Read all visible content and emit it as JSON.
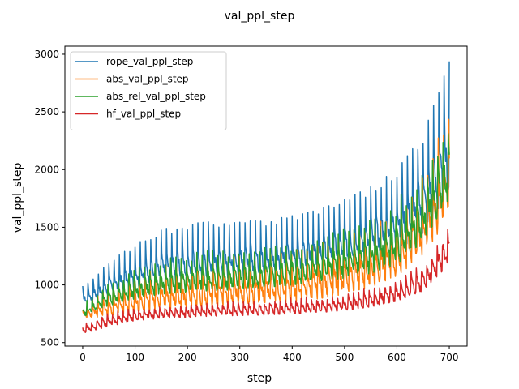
{
  "chart_data": {
    "type": "line",
    "title": "val_ppl_step",
    "xlabel": "step",
    "ylabel": "val_ppl_step",
    "xlim": [
      -34,
      734
    ],
    "ylim": [
      470,
      3070
    ],
    "x_ticks": [
      0,
      100,
      200,
      300,
      400,
      500,
      600,
      700
    ],
    "y_ticks": [
      500,
      1000,
      1500,
      2000,
      2500,
      3000
    ],
    "grid": false,
    "legend": "top-left",
    "x_range": [
      0,
      700
    ],
    "cycle_length": 10,
    "series": [
      {
        "name": "rope_val_ppl_step",
        "color": "#1f77b4",
        "envelope_x": [
          0,
          50,
          100,
          150,
          200,
          250,
          300,
          350,
          400,
          450,
          500,
          550,
          600,
          650,
          700
        ],
        "low": [
          820,
          900,
          960,
          1000,
          1020,
          1030,
          1040,
          1060,
          1080,
          1110,
          1150,
          1200,
          1300,
          1450,
          1780
        ],
        "high": [
          990,
          1200,
          1350,
          1480,
          1530,
          1550,
          1550,
          1560,
          1600,
          1650,
          1740,
          1850,
          2000,
          2300,
          2940
        ]
      },
      {
        "name": "abs_val_ppl_step",
        "color": "#ff7f0e",
        "envelope_x": [
          0,
          50,
          100,
          150,
          200,
          250,
          300,
          350,
          400,
          450,
          500,
          550,
          600,
          650,
          700
        ],
        "low": [
          700,
          730,
          760,
          790,
          800,
          810,
          820,
          830,
          850,
          880,
          920,
          980,
          1080,
          1250,
          1600
        ],
        "high": [
          860,
          1000,
          1100,
          1170,
          1220,
          1250,
          1270,
          1290,
          1330,
          1380,
          1450,
          1540,
          1700,
          2000,
          2640
        ]
      },
      {
        "name": "abs_rel_val_ppl_step",
        "color": "#2ca02c",
        "envelope_x": [
          0,
          50,
          100,
          150,
          200,
          250,
          300,
          350,
          400,
          450,
          500,
          550,
          600,
          650,
          700
        ],
        "low": [
          720,
          820,
          880,
          920,
          940,
          950,
          960,
          980,
          1000,
          1030,
          1060,
          1100,
          1180,
          1380,
          1750
        ],
        "high": [
          860,
          1080,
          1200,
          1300,
          1350,
          1380,
          1390,
          1400,
          1450,
          1500,
          1580,
          1680,
          1850,
          2150,
          2600
        ]
      },
      {
        "name": "hf_val_ppl_step",
        "color": "#d62728",
        "envelope_x": [
          0,
          50,
          100,
          150,
          200,
          250,
          300,
          350,
          400,
          450,
          500,
          550,
          600,
          650,
          700
        ],
        "low": [
          580,
          640,
          690,
          710,
          720,
          730,
          735,
          740,
          750,
          760,
          780,
          810,
          860,
          950,
          1180
        ],
        "high": [
          700,
          810,
          860,
          880,
          900,
          910,
          920,
          930,
          950,
          970,
          1000,
          1060,
          1150,
          1300,
          1640
        ]
      }
    ]
  }
}
